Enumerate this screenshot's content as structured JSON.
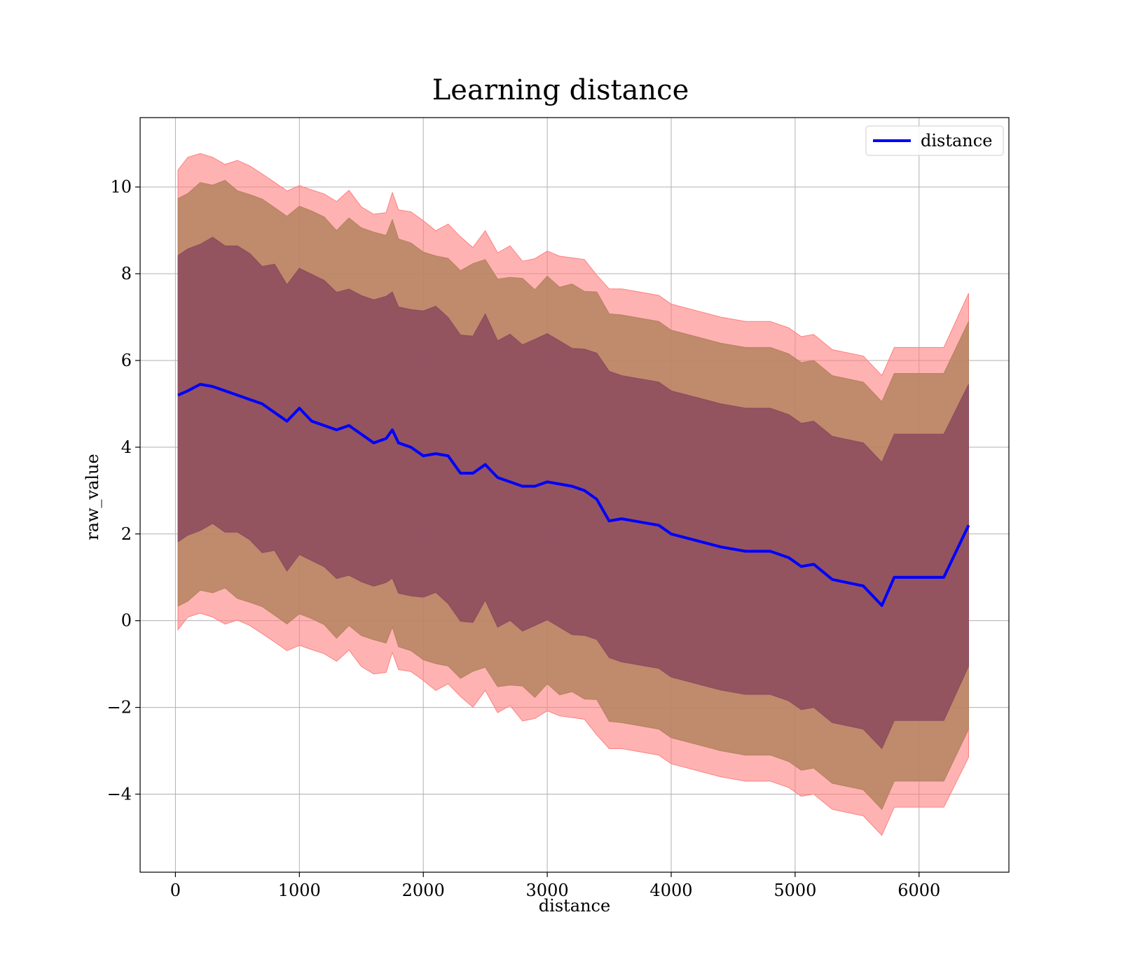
{
  "chart_data": {
    "type": "line",
    "title": "Learning distance",
    "xlabel": "distance",
    "ylabel": "raw_value",
    "xlim": [
      -285,
      6725
    ],
    "ylim": [
      -5.8,
      11.6
    ],
    "xticks": [
      0,
      1000,
      2000,
      3000,
      4000,
      5000,
      6000
    ],
    "yticks": [
      -4,
      -2,
      0,
      2,
      4,
      6,
      8,
      10
    ],
    "xtick_labels": [
      "0",
      "1000",
      "2000",
      "3000",
      "4000",
      "5000",
      "6000"
    ],
    "ytick_labels": [
      "−4",
      "−2",
      "0",
      "2",
      "4",
      "6",
      "8",
      "10"
    ],
    "grid": true,
    "legend": {
      "location": "top-right",
      "entries": [
        "distance"
      ]
    },
    "colors": {
      "line": "#0000ff",
      "band_outer": "#ff7f7f",
      "band_middle": "#b5825f",
      "band_inner": "#8b4a5e"
    },
    "x": [
      20,
      100,
      200,
      300,
      400,
      500,
      600,
      700,
      800,
      900,
      1000,
      1100,
      1200,
      1300,
      1400,
      1500,
      1600,
      1700,
      1750,
      1800,
      1900,
      2000,
      2100,
      2200,
      2300,
      2400,
      2500,
      2600,
      2700,
      2800,
      2900,
      3000,
      3100,
      3200,
      3300,
      3400,
      3500,
      3600,
      3700,
      3800,
      3900,
      4000,
      4200,
      4400,
      4600,
      4800,
      4950,
      5050,
      5150,
      5300,
      5550,
      5700,
      5800,
      6200,
      6400
    ],
    "series": [
      {
        "name": "distance",
        "values": [
          5.2,
          5.3,
          5.45,
          5.4,
          5.3,
          5.2,
          5.1,
          5.0,
          4.8,
          4.6,
          4.9,
          4.6,
          4.5,
          4.4,
          4.5,
          4.3,
          4.1,
          4.2,
          4.4,
          4.1,
          4.0,
          3.8,
          3.85,
          3.8,
          3.4,
          3.4,
          3.6,
          3.3,
          3.2,
          3.1,
          3.1,
          3.2,
          3.15,
          3.1,
          3.0,
          2.8,
          2.3,
          2.35,
          2.3,
          2.25,
          2.2,
          2.0,
          1.85,
          1.7,
          1.6,
          1.6,
          1.45,
          1.25,
          1.3,
          0.95,
          0.8,
          0.35,
          1.0,
          1.0,
          2.2
        ]
      }
    ],
    "bands": [
      {
        "name": "outer",
        "half_width": 5.3,
        "right_half_width": 5.35
      },
      {
        "name": "middle",
        "half_width": 4.7,
        "right_half_width": 4.7
      },
      {
        "name": "inner",
        "half_width": 3.3,
        "right_half_width": 3.25
      }
    ]
  }
}
